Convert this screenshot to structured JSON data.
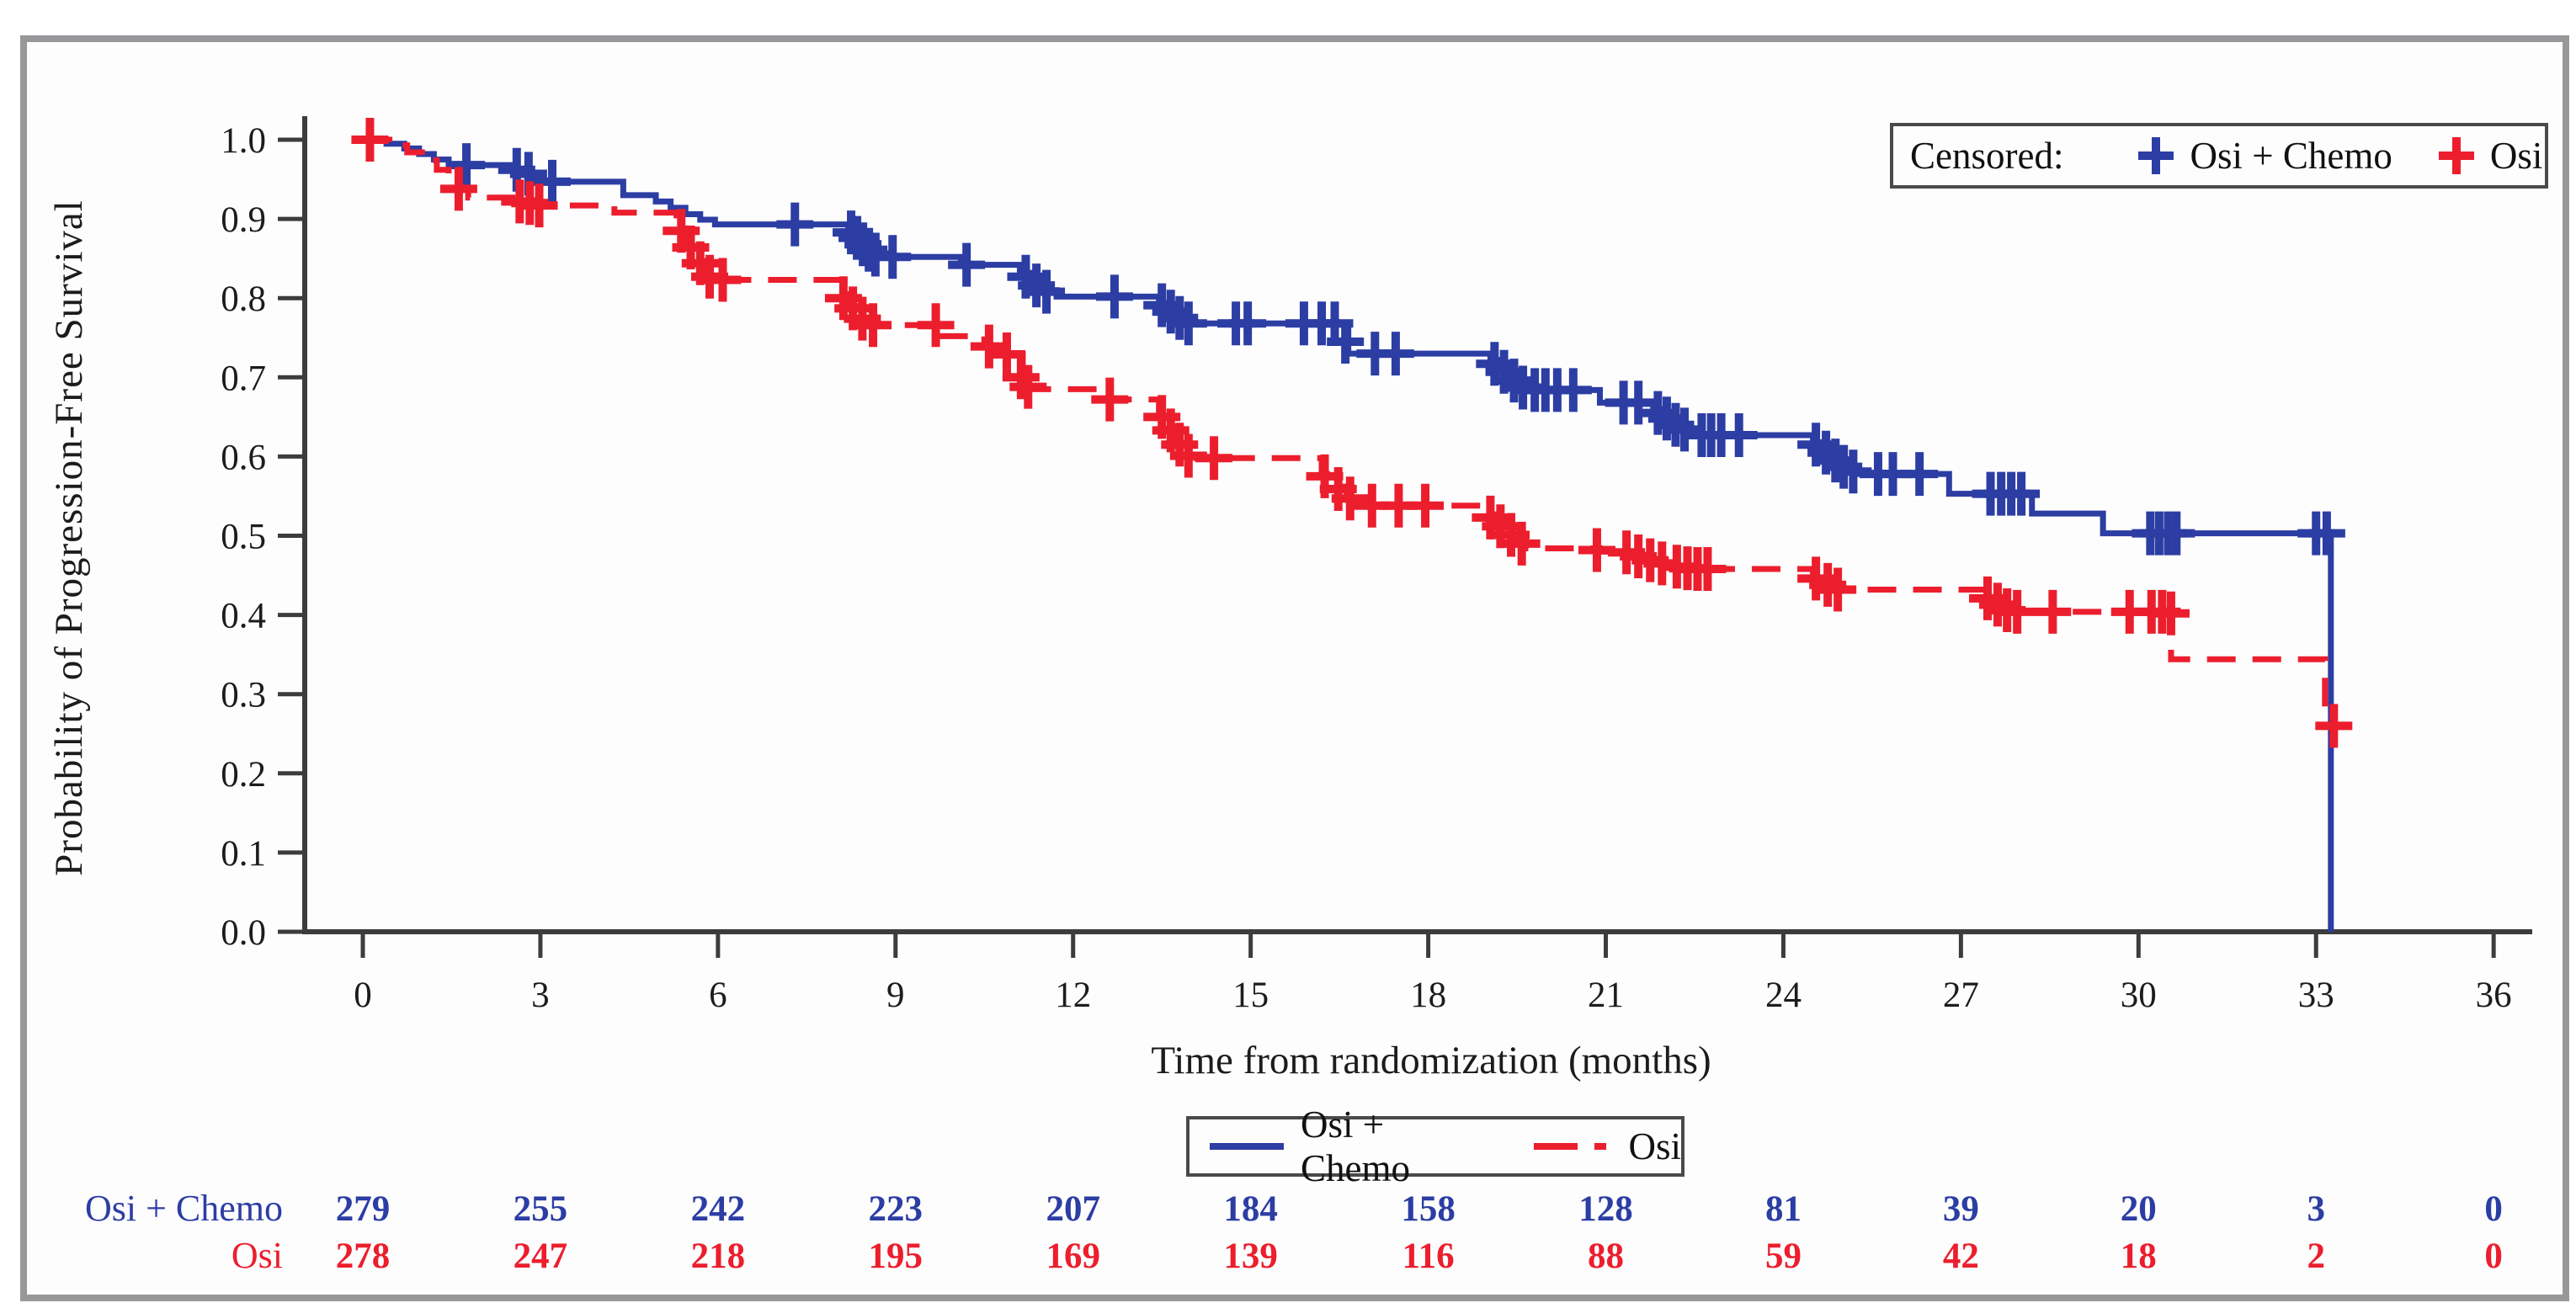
{
  "chart_data": {
    "type": "line",
    "subtype": "kaplan-meier-step",
    "title": "",
    "xlabel": "Time from randomization (months)",
    "ylabel": "Probability of Progression-Free Survival",
    "xlim": [
      0,
      36
    ],
    "ylim": [
      0.0,
      1.0
    ],
    "xticks": [
      0,
      3,
      6,
      9,
      12,
      15,
      18,
      21,
      24,
      27,
      30,
      33,
      36
    ],
    "yticks": [
      0.0,
      0.1,
      0.2,
      0.3,
      0.4,
      0.5,
      0.6,
      0.7,
      0.8,
      0.9,
      1.0
    ],
    "grid": false,
    "axis_color": "#3c3c3c",
    "series": [
      {
        "name": "Osi + Chemo",
        "color": "#2c3da3",
        "line": "solid",
        "steps": [
          [
            0,
            1.0
          ],
          [
            0.4,
            0.995
          ],
          [
            0.7,
            0.989
          ],
          [
            0.95,
            0.982
          ],
          [
            1.2,
            0.975
          ],
          [
            1.45,
            0.968
          ],
          [
            2.55,
            0.962
          ],
          [
            2.72,
            0.957
          ],
          [
            2.88,
            0.951
          ],
          [
            3.05,
            0.947
          ],
          [
            4.4,
            0.93
          ],
          [
            4.95,
            0.922
          ],
          [
            5.2,
            0.914
          ],
          [
            5.45,
            0.906
          ],
          [
            5.7,
            0.899
          ],
          [
            5.95,
            0.893
          ],
          [
            8.2,
            0.886
          ],
          [
            8.3,
            0.879
          ],
          [
            8.4,
            0.871
          ],
          [
            8.5,
            0.864
          ],
          [
            8.6,
            0.858
          ],
          [
            8.72,
            0.852
          ],
          [
            10.1,
            0.842
          ],
          [
            11.1,
            0.832
          ],
          [
            11.3,
            0.82
          ],
          [
            11.5,
            0.81
          ],
          [
            11.72,
            0.802
          ],
          [
            13.45,
            0.794
          ],
          [
            13.6,
            0.786
          ],
          [
            13.75,
            0.777
          ],
          [
            13.95,
            0.768
          ],
          [
            16.65,
            0.73
          ],
          [
            19.05,
            0.722
          ],
          [
            19.2,
            0.712
          ],
          [
            19.35,
            0.702
          ],
          [
            19.5,
            0.692
          ],
          [
            19.62,
            0.684
          ],
          [
            20.9,
            0.668
          ],
          [
            21.8,
            0.66
          ],
          [
            21.95,
            0.652
          ],
          [
            22.1,
            0.644
          ],
          [
            22.25,
            0.636
          ],
          [
            22.4,
            0.63
          ],
          [
            22.52,
            0.627
          ],
          [
            24.5,
            0.618
          ],
          [
            24.65,
            0.608
          ],
          [
            24.8,
            0.598
          ],
          [
            24.95,
            0.588
          ],
          [
            25.1,
            0.582
          ],
          [
            25.25,
            0.578
          ],
          [
            26.8,
            0.553
          ],
          [
            28.2,
            0.528
          ],
          [
            29.4,
            0.503
          ],
          [
            33.25,
            0.0
          ]
        ],
        "censor_marks": [
          [
            1.75,
            0.968
          ],
          [
            2.6,
            0.962
          ],
          [
            2.8,
            0.957
          ],
          [
            3.2,
            0.947
          ],
          [
            7.3,
            0.893
          ],
          [
            8.25,
            0.883
          ],
          [
            8.35,
            0.876
          ],
          [
            8.45,
            0.868
          ],
          [
            8.55,
            0.861
          ],
          [
            8.66,
            0.855
          ],
          [
            8.95,
            0.852
          ],
          [
            10.2,
            0.842
          ],
          [
            11.2,
            0.827
          ],
          [
            11.38,
            0.816
          ],
          [
            11.55,
            0.808
          ],
          [
            12.7,
            0.802
          ],
          [
            13.5,
            0.791
          ],
          [
            13.65,
            0.783
          ],
          [
            13.8,
            0.775
          ],
          [
            13.95,
            0.768
          ],
          [
            14.75,
            0.768
          ],
          [
            14.95,
            0.768
          ],
          [
            15.9,
            0.768
          ],
          [
            16.2,
            0.768
          ],
          [
            16.42,
            0.768
          ],
          [
            16.6,
            0.745
          ],
          [
            17.1,
            0.73
          ],
          [
            17.45,
            0.73
          ],
          [
            19.12,
            0.717
          ],
          [
            19.28,
            0.707
          ],
          [
            19.45,
            0.696
          ],
          [
            19.6,
            0.687
          ],
          [
            19.8,
            0.684
          ],
          [
            19.98,
            0.684
          ],
          [
            20.18,
            0.684
          ],
          [
            20.45,
            0.684
          ],
          [
            21.3,
            0.668
          ],
          [
            21.55,
            0.668
          ],
          [
            21.88,
            0.655
          ],
          [
            22.03,
            0.648
          ],
          [
            22.18,
            0.64
          ],
          [
            22.33,
            0.634
          ],
          [
            22.62,
            0.627
          ],
          [
            22.78,
            0.627
          ],
          [
            22.95,
            0.627
          ],
          [
            23.25,
            0.627
          ],
          [
            24.55,
            0.615
          ],
          [
            24.72,
            0.605
          ],
          [
            24.88,
            0.595
          ],
          [
            25.02,
            0.587
          ],
          [
            25.18,
            0.581
          ],
          [
            25.6,
            0.578
          ],
          [
            25.85,
            0.578
          ],
          [
            26.3,
            0.578
          ],
          [
            27.5,
            0.553
          ],
          [
            27.68,
            0.553
          ],
          [
            27.85,
            0.553
          ],
          [
            28.02,
            0.553
          ],
          [
            30.2,
            0.503
          ],
          [
            30.35,
            0.503
          ],
          [
            30.5,
            0.503
          ],
          [
            30.64,
            0.503
          ],
          [
            33.0,
            0.503
          ],
          [
            33.18,
            0.503
          ]
        ]
      },
      {
        "name": "Osi",
        "color": "#ec1e2d",
        "line": "dashed",
        "steps": [
          [
            0,
            1.0
          ],
          [
            0.45,
            0.993
          ],
          [
            0.75,
            0.984
          ],
          [
            1.0,
            0.974
          ],
          [
            1.25,
            0.962
          ],
          [
            1.45,
            0.95
          ],
          [
            1.6,
            0.938
          ],
          [
            1.78,
            0.927
          ],
          [
            2.7,
            0.922
          ],
          [
            2.95,
            0.917
          ],
          [
            4.25,
            0.908
          ],
          [
            5.3,
            0.888
          ],
          [
            5.45,
            0.867
          ],
          [
            5.62,
            0.847
          ],
          [
            5.8,
            0.829
          ],
          [
            5.98,
            0.823
          ],
          [
            8.05,
            0.805
          ],
          [
            8.2,
            0.79
          ],
          [
            8.36,
            0.776
          ],
          [
            8.52,
            0.766
          ],
          [
            9.75,
            0.752
          ],
          [
            10.5,
            0.74
          ],
          [
            10.8,
            0.729
          ],
          [
            11.15,
            0.685
          ],
          [
            12.55,
            0.672
          ],
          [
            13.45,
            0.656
          ],
          [
            13.6,
            0.638
          ],
          [
            13.76,
            0.62
          ],
          [
            13.92,
            0.602
          ],
          [
            14.08,
            0.598
          ],
          [
            16.2,
            0.578
          ],
          [
            16.42,
            0.562
          ],
          [
            16.62,
            0.549
          ],
          [
            16.85,
            0.538
          ],
          [
            19.0,
            0.527
          ],
          [
            19.15,
            0.516
          ],
          [
            19.32,
            0.505
          ],
          [
            19.5,
            0.495
          ],
          [
            19.65,
            0.484
          ],
          [
            20.9,
            0.48
          ],
          [
            21.5,
            0.476
          ],
          [
            21.7,
            0.471
          ],
          [
            21.9,
            0.466
          ],
          [
            22.15,
            0.461
          ],
          [
            22.4,
            0.458
          ],
          [
            24.5,
            0.449
          ],
          [
            24.7,
            0.441
          ],
          [
            24.9,
            0.432
          ],
          [
            27.4,
            0.423
          ],
          [
            27.6,
            0.414
          ],
          [
            27.8,
            0.407
          ],
          [
            28.0,
            0.404
          ],
          [
            30.55,
            0.344
          ],
          [
            33.15,
            0.26
          ],
          [
            33.5,
            0.26
          ]
        ],
        "censor_marks": [
          [
            0.12,
            1.0
          ],
          [
            1.62,
            0.938
          ],
          [
            2.65,
            0.922
          ],
          [
            2.82,
            0.92
          ],
          [
            2.98,
            0.917
          ],
          [
            5.38,
            0.885
          ],
          [
            5.54,
            0.864
          ],
          [
            5.7,
            0.844
          ],
          [
            5.86,
            0.827
          ],
          [
            6.08,
            0.823
          ],
          [
            8.12,
            0.8
          ],
          [
            8.28,
            0.787
          ],
          [
            8.44,
            0.774
          ],
          [
            8.62,
            0.766
          ],
          [
            9.68,
            0.766
          ],
          [
            10.58,
            0.739
          ],
          [
            10.88,
            0.729
          ],
          [
            11.12,
            0.7
          ],
          [
            11.24,
            0.688
          ],
          [
            12.62,
            0.672
          ],
          [
            13.5,
            0.65
          ],
          [
            13.65,
            0.633
          ],
          [
            13.8,
            0.615
          ],
          [
            13.95,
            0.601
          ],
          [
            14.38,
            0.598
          ],
          [
            16.25,
            0.575
          ],
          [
            16.48,
            0.559
          ],
          [
            16.68,
            0.547
          ],
          [
            17.05,
            0.538
          ],
          [
            17.5,
            0.538
          ],
          [
            17.95,
            0.538
          ],
          [
            19.05,
            0.523
          ],
          [
            19.22,
            0.512
          ],
          [
            19.4,
            0.501
          ],
          [
            19.58,
            0.49
          ],
          [
            20.85,
            0.482
          ],
          [
            21.35,
            0.479
          ],
          [
            21.55,
            0.474
          ],
          [
            21.75,
            0.469
          ],
          [
            21.95,
            0.465
          ],
          [
            22.2,
            0.461
          ],
          [
            22.38,
            0.459
          ],
          [
            22.55,
            0.458
          ],
          [
            22.72,
            0.458
          ],
          [
            24.55,
            0.446
          ],
          [
            24.75,
            0.438
          ],
          [
            24.92,
            0.432
          ],
          [
            27.45,
            0.421
          ],
          [
            27.62,
            0.413
          ],
          [
            27.78,
            0.406
          ],
          [
            27.95,
            0.404
          ],
          [
            28.55,
            0.404
          ],
          [
            29.85,
            0.404
          ],
          [
            30.22,
            0.404
          ],
          [
            30.4,
            0.404
          ],
          [
            30.55,
            0.402
          ],
          [
            33.3,
            0.26
          ]
        ]
      }
    ]
  },
  "censored_legend": {
    "title": "Censored:",
    "items": [
      {
        "label": "Osi + Chemo",
        "color": "#2c3da3"
      },
      {
        "label": "Osi",
        "color": "#ec1e2d"
      }
    ]
  },
  "line_legend": {
    "items": [
      {
        "label": "Osi + Chemo",
        "color": "#2c3da3",
        "style": "solid"
      },
      {
        "label": "Osi",
        "color": "#ec1e2d",
        "style": "dashed"
      }
    ]
  },
  "risk_table": {
    "times": [
      0,
      3,
      6,
      9,
      12,
      15,
      18,
      21,
      24,
      27,
      30,
      33,
      36
    ],
    "rows": [
      {
        "label": "Osi + Chemo",
        "color": "#2c3da3",
        "values": [
          279,
          255,
          242,
          223,
          207,
          184,
          158,
          128,
          81,
          39,
          20,
          3,
          0
        ]
      },
      {
        "label": "Osi",
        "color": "#ec1e2d",
        "values": [
          278,
          247,
          218,
          195,
          169,
          139,
          116,
          88,
          59,
          42,
          18,
          2,
          0
        ]
      }
    ]
  }
}
